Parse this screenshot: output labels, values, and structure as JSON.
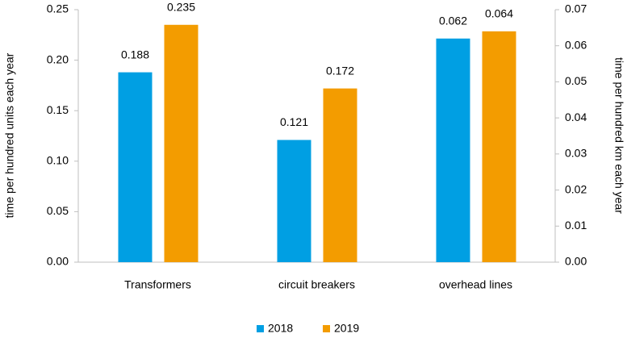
{
  "chart_data": {
    "type": "bar",
    "categories": [
      "Transformers",
      "circuit breakers",
      "overhead lines"
    ],
    "series": [
      {
        "name": "2018",
        "color": "#009fe3",
        "values": [
          0.188,
          0.121,
          0.062
        ],
        "axis": [
          "y",
          "y",
          "y2"
        ]
      },
      {
        "name": "2019",
        "color": "#f39c00",
        "values": [
          0.235,
          0.172,
          0.064
        ],
        "axis": [
          "y",
          "y",
          "y2"
        ]
      }
    ],
    "ylabel": "time per hundred units each year",
    "y2label": "time per hundred km each year",
    "ylim": [
      0,
      0.25
    ],
    "yticks": [
      {
        "value": 0,
        "label": "0.00"
      },
      0.05,
      {
        "value": 0.1,
        "label": "0.10"
      },
      0.15,
      {
        "value": 0.2,
        "label": "0.20"
      },
      0.25
    ],
    "y2lim": [
      0,
      0.07
    ],
    "y2ticks": [
      {
        "value": 0,
        "label": "0.00"
      },
      0.01,
      0.02,
      0.03,
      0.04,
      0.05,
      0.06,
      0.07
    ],
    "legend": "bottom",
    "grid": false
  }
}
